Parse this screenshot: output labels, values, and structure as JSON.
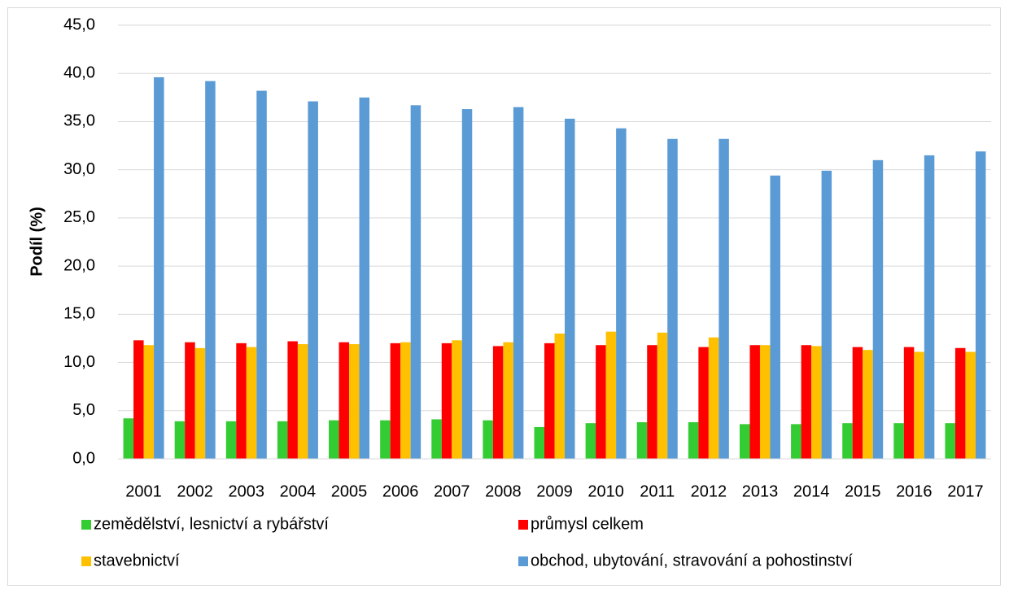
{
  "chart_data": {
    "type": "bar",
    "y_label": "Podíl (%)",
    "categories": [
      "2001",
      "2002",
      "2003",
      "2004",
      "2005",
      "2006",
      "2007",
      "2008",
      "2009",
      "2010",
      "2011",
      "2012",
      "2013",
      "2014",
      "2015",
      "2016",
      "2017"
    ],
    "series": [
      {
        "name": "zemědělství, lesnictví a rybářství",
        "color": "#33cc33",
        "values": [
          4.2,
          3.9,
          3.9,
          3.9,
          4.0,
          4.0,
          4.1,
          4.0,
          3.3,
          3.7,
          3.8,
          3.8,
          3.6,
          3.6,
          3.7,
          3.7,
          3.7
        ]
      },
      {
        "name": "průmysl celkem",
        "color": "#ff0000",
        "values": [
          12.3,
          12.1,
          12.0,
          12.2,
          12.1,
          12.0,
          12.0,
          11.7,
          12.0,
          11.8,
          11.8,
          11.6,
          11.8,
          11.8,
          11.6,
          11.6,
          11.5
        ]
      },
      {
        "name": "stavebnictví",
        "color": "#ffc000",
        "values": [
          11.8,
          11.5,
          11.6,
          11.9,
          11.9,
          12.1,
          12.3,
          12.1,
          13.0,
          13.2,
          13.1,
          12.6,
          11.8,
          11.7,
          11.3,
          11.1,
          11.1
        ]
      },
      {
        "name": "obchod, ubytování, stravování a pohostinství",
        "color": "#5b9bd5",
        "values": [
          39.6,
          39.2,
          38.2,
          37.1,
          37.5,
          36.7,
          36.3,
          36.5,
          35.3,
          34.3,
          33.2,
          33.2,
          29.4,
          29.9,
          31.0,
          31.5,
          31.9
        ]
      }
    ],
    "ylim": [
      0,
      45
    ],
    "yticks": [
      {
        "value": 0,
        "label": "0,0"
      },
      {
        "value": 5,
        "label": "5,0"
      },
      {
        "value": 10,
        "label": "10,0"
      },
      {
        "value": 15,
        "label": "15,0"
      },
      {
        "value": 20,
        "label": "20,0"
      },
      {
        "value": 25,
        "label": "25,0"
      },
      {
        "value": 30,
        "label": "30,0"
      },
      {
        "value": 35,
        "label": "35,0"
      },
      {
        "value": 40,
        "label": "40,0"
      },
      {
        "value": 45,
        "label": "45,0"
      }
    ],
    "grid": true
  }
}
